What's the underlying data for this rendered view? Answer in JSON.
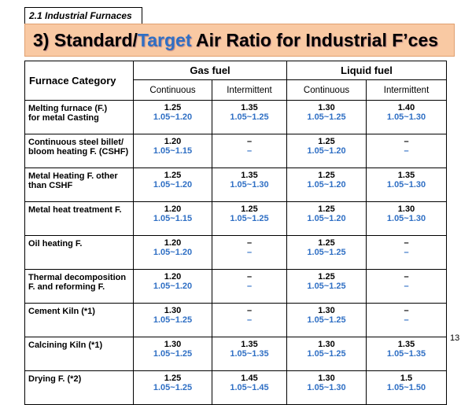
{
  "section_tag": "2.1 Industrial Furnaces",
  "title": {
    "prefix": "3) Standard/",
    "accent": "Target",
    "suffix": " Air Ratio for Industrial F’ces"
  },
  "colors": {
    "title_bg": "#f9c9a3",
    "target_text": "#2f6fc4"
  },
  "table": {
    "category_header": "Furnace Category",
    "fuel_groups": [
      "Gas fuel",
      "Liquid fuel"
    ],
    "modes": [
      "Continuous",
      "Intermittent",
      "Continuous",
      "Intermittent"
    ],
    "rows": [
      {
        "category": [
          "Melting furnace (F.)",
          "for metal Casting"
        ],
        "cells": [
          {
            "std": "1.25",
            "target": "1.05~1.20"
          },
          {
            "std": "1.35",
            "target": "1.05~1.25"
          },
          {
            "std": "1.30",
            "target": "1.05~1.25"
          },
          {
            "std": "1.40",
            "target": "1.05~1.30"
          }
        ]
      },
      {
        "category": [
          "Continuous steel billet/",
          "bloom heating F. (CSHF)"
        ],
        "cells": [
          {
            "std": "1.20",
            "target": "1.05~1.15"
          },
          {
            "std": "–",
            "target": "–"
          },
          {
            "std": "1.25",
            "target": "1.05~1.20"
          },
          {
            "std": "–",
            "target": "–"
          }
        ]
      },
      {
        "category": [
          "Metal Heating F. other",
          "than CSHF"
        ],
        "cells": [
          {
            "std": "1.25",
            "target": "1.05~1.20"
          },
          {
            "std": "1.35",
            "target": "1.05~1.30"
          },
          {
            "std": "1.25",
            "target": "1.05~1.20"
          },
          {
            "std": "1.35",
            "target": "1.05~1.30"
          }
        ]
      },
      {
        "category": [
          "Metal heat treatment  F.",
          ""
        ],
        "cells": [
          {
            "std": "1.20",
            "target": "1.05~1.15"
          },
          {
            "std": "1.25",
            "target": "1.05~1.25"
          },
          {
            "std": "1.25",
            "target": "1.05~1.20"
          },
          {
            "std": "1.30",
            "target": "1.05~1.30"
          }
        ]
      },
      {
        "category": [
          "Oil heating F.",
          ""
        ],
        "cells": [
          {
            "std": "1.20",
            "target": "1.05~1.20"
          },
          {
            "std": "–",
            "target": "–"
          },
          {
            "std": "1.25",
            "target": "1.05~1.25"
          },
          {
            "std": "–",
            "target": "–"
          }
        ]
      },
      {
        "category": [
          "Thermal decomposition",
          "F. and reforming F."
        ],
        "cells": [
          {
            "std": "1.20",
            "target": "1.05~1.20"
          },
          {
            "std": "–",
            "target": "–"
          },
          {
            "std": "1.25",
            "target": "1.05~1.25"
          },
          {
            "std": "–",
            "target": "–"
          }
        ]
      },
      {
        "category": [
          "Cement Kiln (*1)",
          ""
        ],
        "cells": [
          {
            "std": "1.30",
            "target": "1.05~1.25"
          },
          {
            "std": "–",
            "target": "–"
          },
          {
            "std": "1.30",
            "target": "1.05~1.25"
          },
          {
            "std": "–",
            "target": "–"
          }
        ]
      },
      {
        "category": [
          "Calcining Kiln (*1)",
          ""
        ],
        "cells": [
          {
            "std": "1.30",
            "target": "1.05~1.25"
          },
          {
            "std": "1.35",
            "target": "1.05~1.35"
          },
          {
            "std": "1.30",
            "target": "1.05~1.25"
          },
          {
            "std": "1.35",
            "target": "1.05~1.35"
          }
        ]
      },
      {
        "category": [
          "Drying F. (*2)",
          ""
        ],
        "cells": [
          {
            "std": "1.25",
            "target": "1.05~1.25"
          },
          {
            "std": "1.45",
            "target": "1.05~1.45"
          },
          {
            "std": "1.30",
            "target": "1.05~1.30"
          },
          {
            "std": "1.5",
            "target": "1.05~1.50"
          }
        ]
      }
    ]
  },
  "page_number": "13"
}
